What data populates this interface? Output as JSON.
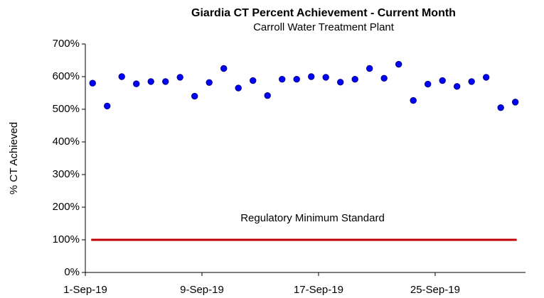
{
  "chart_data": {
    "type": "scatter",
    "title": "Giardia CT Percent Achievement - Current Month",
    "subtitle": "Carroll Water Treatment Plant",
    "y_label": "% CT Achieved",
    "x": [
      1.5,
      2.5,
      3.5,
      4.5,
      5.5,
      6.5,
      7.5,
      8.5,
      9.5,
      10.5,
      11.5,
      12.5,
      13.5,
      14.5,
      15.5,
      16.5,
      17.5,
      18.5,
      19.5,
      20.5,
      21.5,
      22.5,
      23.5,
      24.5,
      25.5,
      26.5,
      27.5,
      28.5,
      29.5,
      30.5
    ],
    "series": [
      {
        "name": "% CT Achieved",
        "color": "#0000ff",
        "values": [
          580,
          510,
          600,
          578,
          585,
          585,
          598,
          540,
          582,
          625,
          565,
          588,
          542,
          592,
          592,
          600,
          598,
          583,
          592,
          625,
          595,
          638,
          527,
          577,
          588,
          570,
          585,
          598,
          505,
          522
        ]
      }
    ],
    "xlim": [
      1,
      31.2
    ],
    "xticks": [
      {
        "value": 1,
        "label": "1-Sep-19"
      },
      {
        "value": 9,
        "label": "9-Sep-19"
      },
      {
        "value": 17,
        "label": "17-Sep-19"
      },
      {
        "value": 25,
        "label": "25-Sep-19"
      }
    ],
    "ylim": [
      0,
      700
    ],
    "yticks": [
      {
        "value": 0,
        "label": "0%"
      },
      {
        "value": 100,
        "label": "100%"
      },
      {
        "value": 200,
        "label": "200%"
      },
      {
        "value": 300,
        "label": "300%"
      },
      {
        "value": 400,
        "label": "400%"
      },
      {
        "value": 500,
        "label": "500%"
      },
      {
        "value": 600,
        "label": "600%"
      },
      {
        "value": 700,
        "label": "700%"
      }
    ],
    "grid": false,
    "reference_line": {
      "label": "Regulatory Minimum Standard",
      "value": 100,
      "color": "#c00000"
    }
  }
}
